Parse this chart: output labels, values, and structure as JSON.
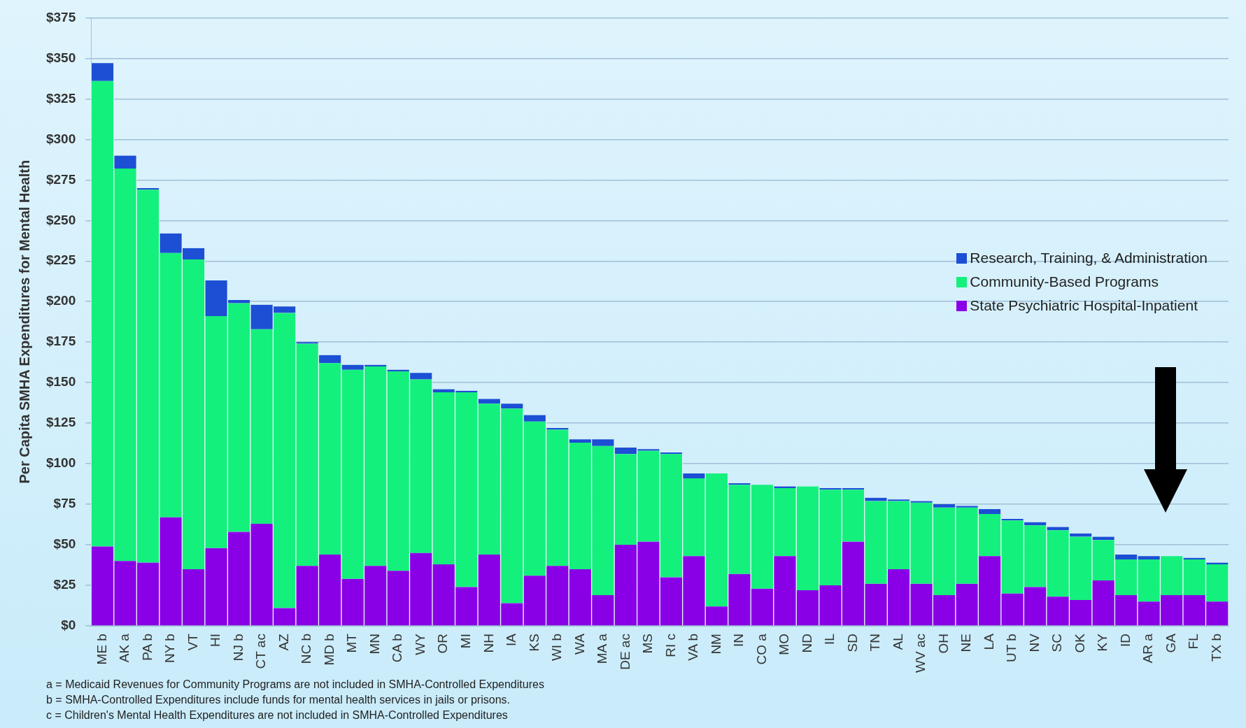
{
  "chart_data": {
    "type": "bar",
    "stacked": true,
    "ylabel": "Per Capita SMHA Expenditures for Mental Health",
    "categories": [
      "ME b",
      "AK a",
      "PA b",
      "NY b",
      "VT",
      "HI",
      "NJ b",
      "CT ac",
      "AZ",
      "NC b",
      "MD b",
      "MT",
      "MN",
      "CA b",
      "WY",
      "OR",
      "MI",
      "NH",
      "IA",
      "KS",
      "WI b",
      "WA",
      "MA a",
      "DE ac",
      "MS",
      "RI c",
      "VA b",
      "NM",
      "IN",
      "CO a",
      "MO",
      "ND",
      "IL",
      "SD",
      "TN",
      "AL",
      "WV ac",
      "OH",
      "NE",
      "LA",
      "UT b",
      "NV",
      "SC",
      "OK",
      "KY",
      "ID",
      "AR a",
      "GA",
      "FL",
      "TX b"
    ],
    "series": [
      {
        "name": "State Psychiatric Hospital-Inpatient",
        "color": "#8a00e6",
        "values": [
          49,
          40,
          39,
          67,
          35,
          48,
          58,
          63,
          11,
          37,
          44,
          29,
          37,
          34,
          45,
          38,
          24,
          44,
          14,
          31,
          37,
          35,
          19,
          50,
          52,
          30,
          43,
          12,
          32,
          23,
          43,
          22,
          25,
          52,
          26,
          35,
          26,
          19,
          26,
          43,
          20,
          24,
          18,
          16,
          28,
          19,
          15,
          19,
          19,
          15
        ]
      },
      {
        "name": "Community-Based Programs",
        "color": "#14f07c",
        "values": [
          287,
          242,
          230,
          163,
          191,
          143,
          141,
          120,
          182,
          137,
          118,
          129,
          123,
          123,
          107,
          106,
          120,
          93,
          120,
          95,
          84,
          78,
          92,
          56,
          56,
          76,
          48,
          82,
          55,
          64,
          42,
          64,
          59,
          32,
          51,
          42,
          50,
          54,
          47,
          26,
          45,
          38,
          41,
          39,
          25,
          22,
          26,
          24,
          22,
          23
        ]
      },
      {
        "name": "Research, Training, & Administration",
        "color": "#1c4fd4",
        "values": [
          11,
          8,
          1,
          12,
          7,
          22,
          2,
          15,
          4,
          1,
          5,
          3,
          1,
          1,
          4,
          2,
          1,
          3,
          3,
          4,
          1,
          2,
          4,
          4,
          1,
          1,
          3,
          0,
          1,
          0,
          1,
          0,
          1,
          1,
          2,
          1,
          1,
          2,
          1,
          3,
          1,
          2,
          2,
          2,
          2,
          3,
          2,
          0,
          1,
          1
        ]
      }
    ],
    "ylim": [
      0,
      375
    ],
    "yticks": [
      {
        "value": 0,
        "label": "$0"
      },
      {
        "value": 25,
        "label": "$25"
      },
      {
        "value": 50,
        "label": "$50"
      },
      {
        "value": 75,
        "label": "$75"
      },
      {
        "value": 100,
        "label": "$100"
      },
      {
        "value": 125,
        "label": "$125"
      },
      {
        "value": 150,
        "label": "$150"
      },
      {
        "value": 175,
        "label": "$175"
      },
      {
        "value": 200,
        "label": "$200"
      },
      {
        "value": 225,
        "label": "$225"
      },
      {
        "value": 250,
        "label": "$250"
      },
      {
        "value": 275,
        "label": "$275"
      },
      {
        "value": 300,
        "label": "$300"
      },
      {
        "value": 325,
        "label": "$325"
      },
      {
        "value": 350,
        "label": "$350"
      },
      {
        "value": 375,
        "label": "$375"
      }
    ],
    "grid": "y",
    "legend": "right",
    "annotations": [
      "a = Medicaid Revenues for Community Programs are not included in SMHA-Controlled Expenditures",
      "b = SMHA-Controlled Expenditures include funds for mental health services in jails or prisons.",
      "c = Children's Mental Health Expenditures are not included in SMHA-Controlled Expenditures"
    ]
  }
}
